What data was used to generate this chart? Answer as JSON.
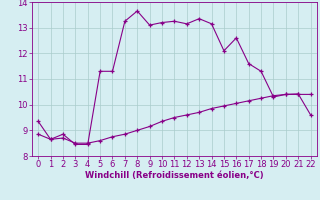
{
  "xlabel": "Windchill (Refroidissement éolien,°C)",
  "background_color": "#d6eef2",
  "line_color": "#880088",
  "grid_color": "#aacccc",
  "xlim": [
    -0.5,
    22.5
  ],
  "ylim": [
    8,
    14
  ],
  "yticks": [
    8,
    9,
    10,
    11,
    12,
    13,
    14
  ],
  "xticks": [
    0,
    1,
    2,
    3,
    4,
    5,
    6,
    7,
    8,
    9,
    10,
    11,
    12,
    13,
    14,
    15,
    16,
    17,
    18,
    19,
    20,
    21,
    22
  ],
  "line1_x": [
    0,
    1,
    2,
    3,
    4,
    5,
    6,
    7,
    8,
    9,
    10,
    11,
    12,
    13,
    14,
    15,
    16,
    17,
    18,
    19,
    20,
    21,
    22
  ],
  "line1_y": [
    9.35,
    8.65,
    8.85,
    8.45,
    8.45,
    11.3,
    11.3,
    13.25,
    13.65,
    13.1,
    13.2,
    13.25,
    13.15,
    13.35,
    13.15,
    12.1,
    12.6,
    11.6,
    11.3,
    10.3,
    10.4,
    10.4,
    10.4
  ],
  "line2_x": [
    0,
    1,
    2,
    3,
    4,
    5,
    6,
    7,
    8,
    9,
    10,
    11,
    12,
    13,
    14,
    15,
    16,
    17,
    18,
    19,
    20,
    21,
    22
  ],
  "line2_y": [
    8.85,
    8.65,
    8.7,
    8.5,
    8.5,
    8.6,
    8.75,
    8.85,
    9.0,
    9.15,
    9.35,
    9.5,
    9.6,
    9.7,
    9.85,
    9.95,
    10.05,
    10.15,
    10.25,
    10.35,
    10.4,
    10.42,
    9.6
  ],
  "label_fontsize": 6,
  "tick_fontsize": 6
}
